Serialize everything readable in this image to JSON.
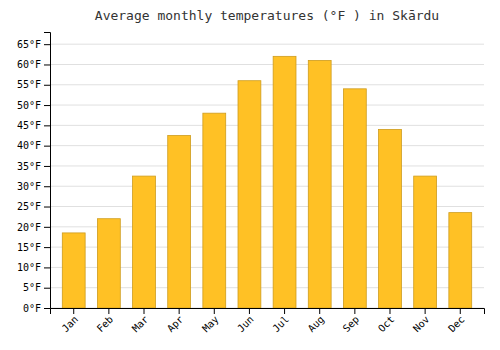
{
  "chart_data": {
    "type": "bar",
    "title": "Average monthly temperatures (°F ) in Skārdu",
    "categories": [
      "Jan",
      "Feb",
      "Mar",
      "Apr",
      "May",
      "Jun",
      "Jul",
      "Aug",
      "Sep",
      "Oct",
      "Nov",
      "Dec"
    ],
    "values": [
      18.5,
      22.0,
      32.5,
      42.5,
      48.0,
      56.0,
      62.0,
      61.0,
      54.0,
      44.0,
      32.5,
      23.5
    ],
    "color": "#FFC125",
    "ylim": [
      0,
      68
    ],
    "yticks": [
      {
        "value": 0,
        "label": "0°F"
      },
      {
        "value": 5,
        "label": "5°F"
      },
      {
        "value": 10,
        "label": "10°F"
      },
      {
        "value": 15,
        "label": "15°F"
      },
      {
        "value": 20,
        "label": "20°F"
      },
      {
        "value": 25,
        "label": "25°F"
      },
      {
        "value": 30,
        "label": "30°F"
      },
      {
        "value": 35,
        "label": "35°F"
      },
      {
        "value": 40,
        "label": "40°F"
      },
      {
        "value": 45,
        "label": "45°F"
      },
      {
        "value": 50,
        "label": "50°F"
      },
      {
        "value": 55,
        "label": "55°F"
      },
      {
        "value": 60,
        "label": "60°F"
      },
      {
        "value": 65,
        "label": "65°F"
      }
    ],
    "grid": true
  }
}
